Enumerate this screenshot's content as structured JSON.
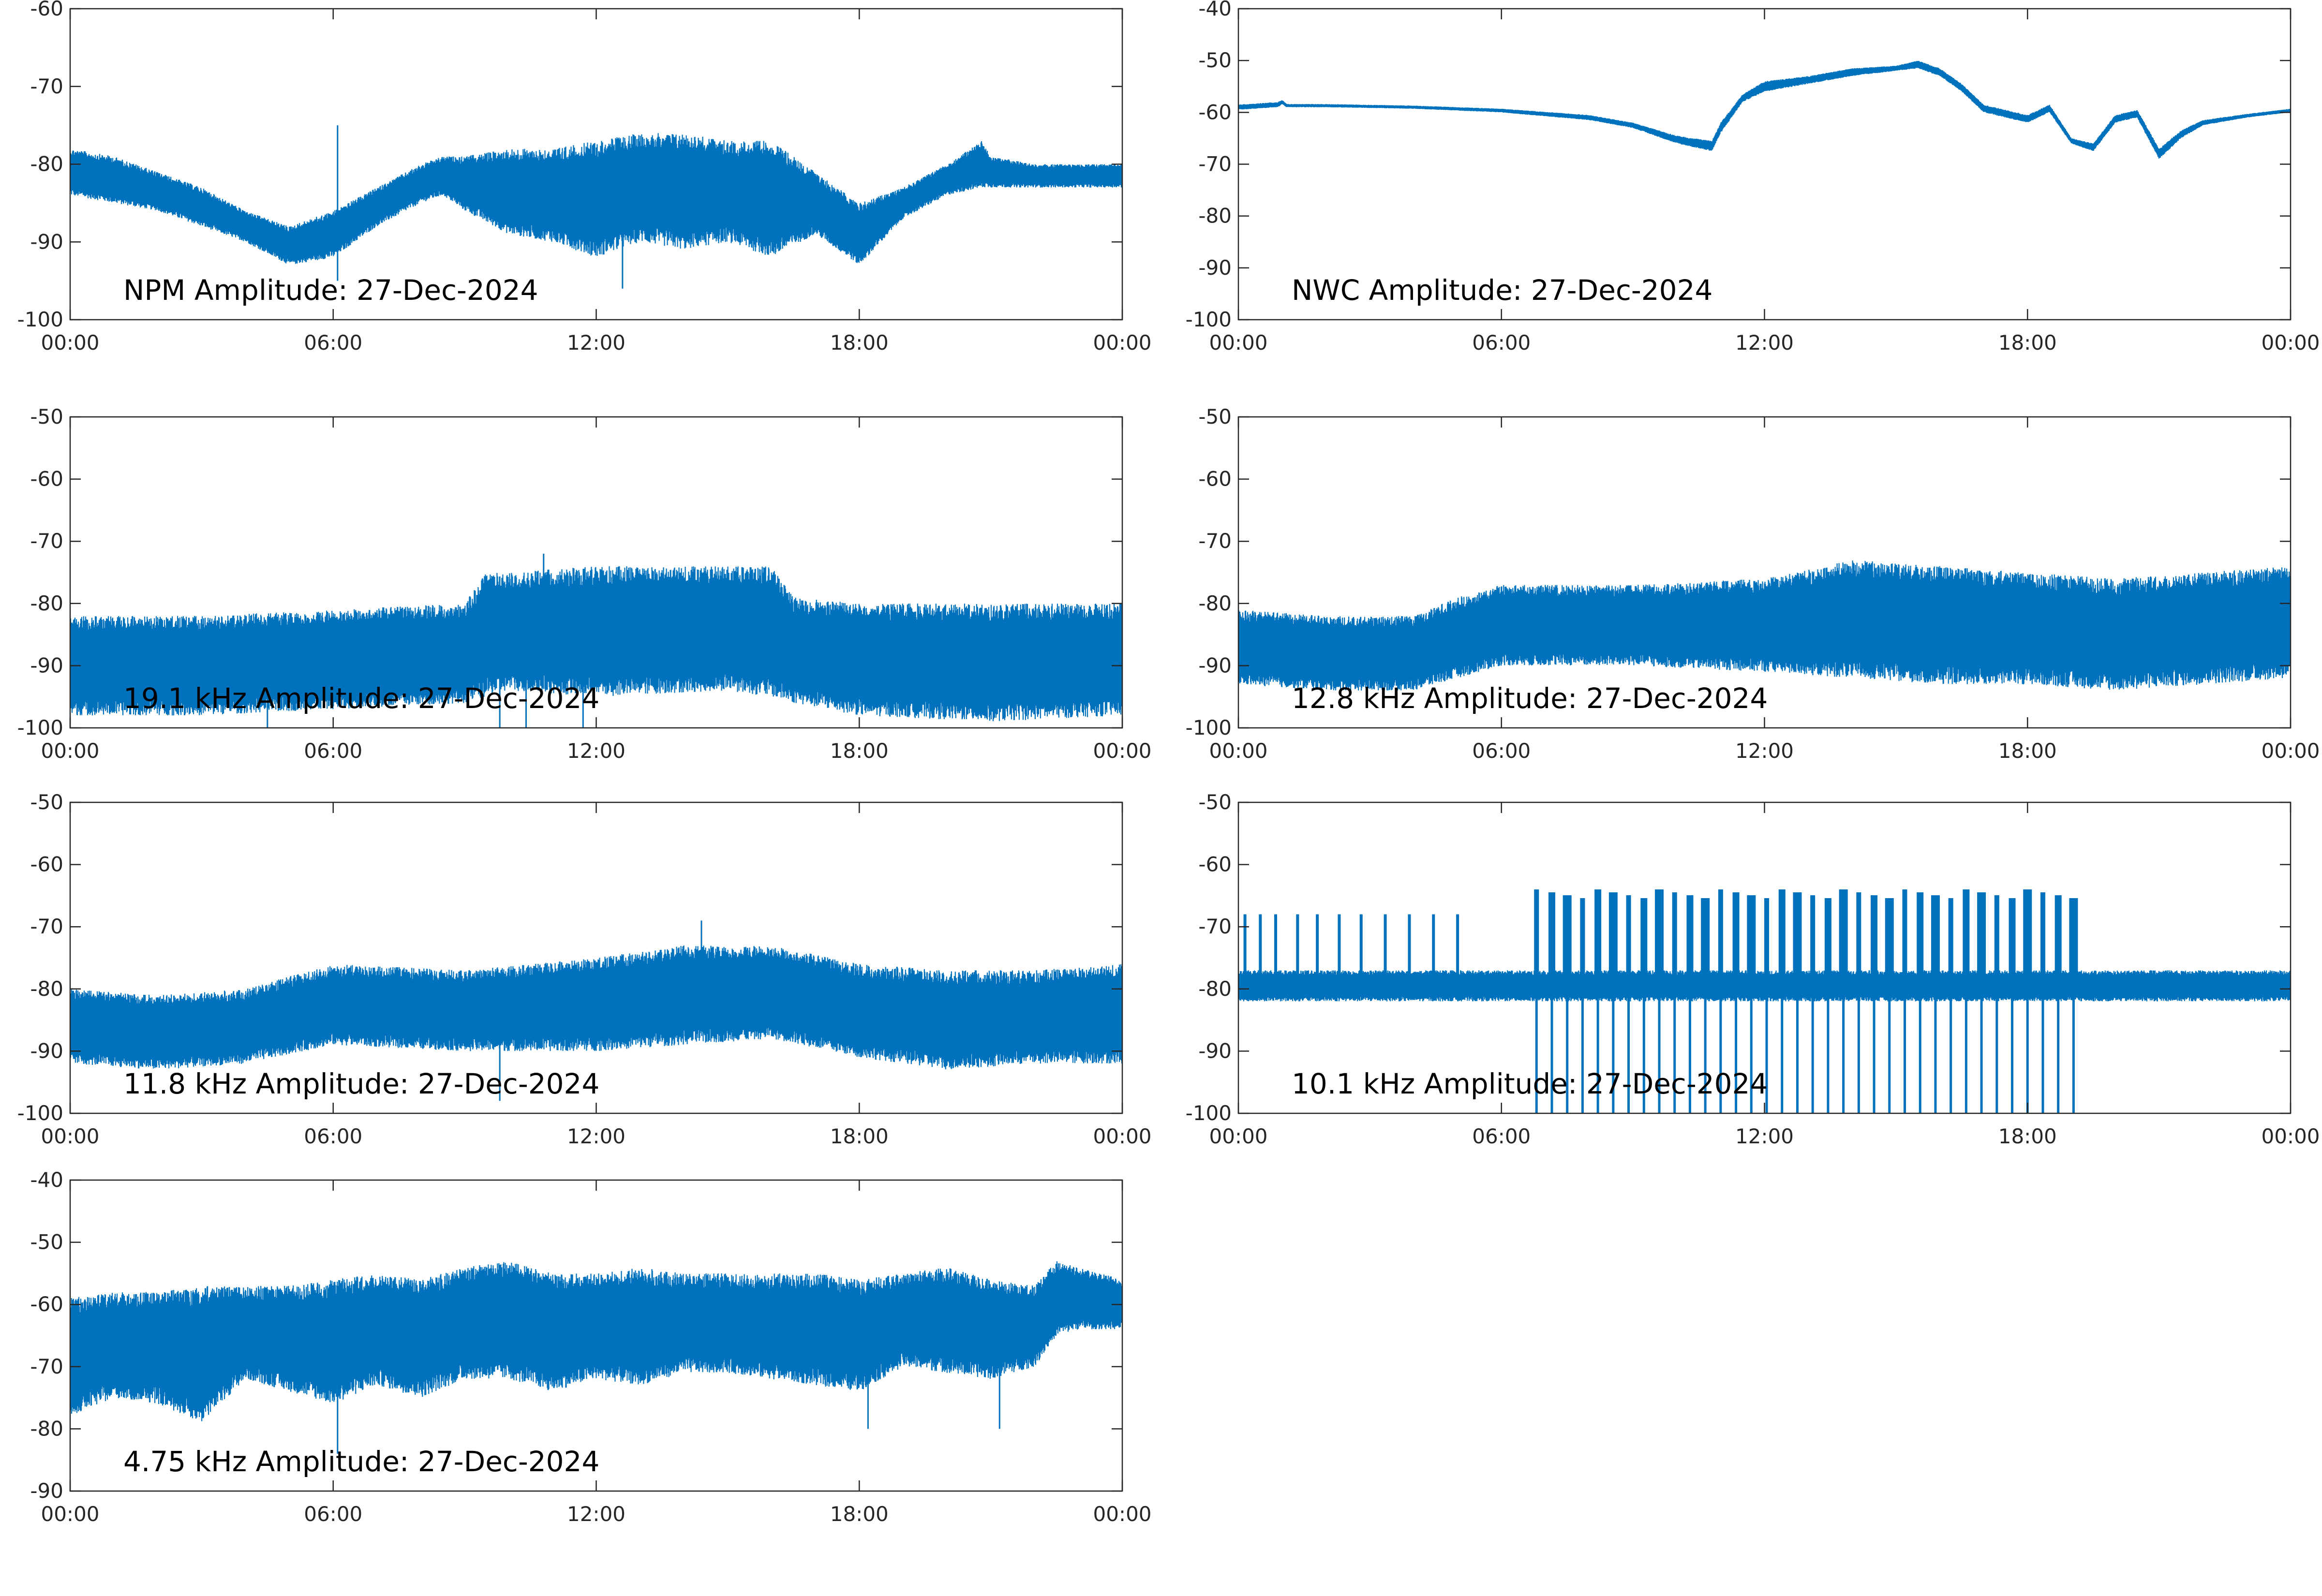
{
  "chart_data": [
    {
      "type": "line",
      "title": "NPM Amplitude: 27-Dec-2024",
      "x_ticks": [
        "00:00",
        "06:00",
        "12:00",
        "18:00",
        "00:00"
      ],
      "xlim_hours": [
        0,
        24
      ],
      "ylim": [
        -100,
        -60
      ],
      "y_ticks": [
        -60,
        -70,
        -80,
        -90,
        -100
      ],
      "grid": false,
      "color": "#0072BD",
      "series": [
        {
          "x_hours": [
            0,
            1,
            2,
            3,
            4,
            5,
            6,
            7,
            8,
            8.5,
            9,
            10,
            11,
            12,
            13,
            14,
            15,
            16,
            17,
            17.5,
            18,
            19,
            20,
            20.8,
            21,
            22,
            23,
            24
          ],
          "min": [
            -84,
            -85,
            -86,
            -88,
            -90,
            -93,
            -92,
            -88,
            -85,
            -84,
            -86,
            -89,
            -90,
            -92,
            -90,
            -91,
            -90,
            -92,
            -89,
            -91,
            -93,
            -87,
            -84,
            -83,
            -83,
            -83,
            -83,
            -83
          ],
          "max": [
            -78,
            -79,
            -81,
            -83,
            -86,
            -88,
            -86,
            -83,
            -80,
            -79,
            -79,
            -78,
            -78,
            -77,
            -76,
            -76,
            -77,
            -77,
            -81,
            -83,
            -85,
            -83,
            -80,
            -77,
            -79,
            -80,
            -80,
            -80
          ],
          "spikes": [
            {
              "x": 6.1,
              "y": -75
            },
            {
              "x": 6.1,
              "y": -95
            },
            {
              "x": 12.6,
              "y": -96
            }
          ]
        }
      ]
    },
    {
      "type": "line",
      "title": "NWC Amplitude: 27-Dec-2024",
      "x_ticks": [
        "00:00",
        "06:00",
        "12:00",
        "18:00",
        "00:00"
      ],
      "xlim_hours": [
        0,
        24
      ],
      "ylim": [
        -100,
        -40
      ],
      "y_ticks": [
        -40,
        -50,
        -60,
        -70,
        -80,
        -90,
        -100
      ],
      "grid": false,
      "color": "#0072BD",
      "series": [
        {
          "x_hours": [
            0,
            0.9,
            1,
            1.1,
            2,
            4,
            6,
            8,
            9,
            10,
            10.8,
            11,
            11.5,
            12,
            13,
            14,
            15,
            15.5,
            16,
            16.5,
            17,
            17.5,
            18,
            18.5,
            19,
            19.5,
            20,
            20.5,
            21,
            21.5,
            22,
            23,
            24
          ],
          "min": [
            -59.5,
            -59,
            -58.4,
            -59,
            -59,
            -59.3,
            -60,
            -61.5,
            -63,
            -66,
            -67.5,
            -64,
            -58,
            -56,
            -54.5,
            -53,
            -52,
            -51.5,
            -53,
            -56,
            -60,
            -61,
            -62,
            -60,
            -66,
            -67.5,
            -62,
            -61,
            -69,
            -65,
            -62.5,
            -61,
            -60
          ],
          "max": [
            -58.5,
            -58,
            -57.6,
            -58.4,
            -58.4,
            -58.7,
            -59.3,
            -60.5,
            -62,
            -64.5,
            -65.5,
            -62,
            -56.5,
            -54,
            -53,
            -51.5,
            -51,
            -50,
            -51.5,
            -54.5,
            -58.5,
            -59.5,
            -60.5,
            -58.5,
            -65,
            -66,
            -60.5,
            -59.5,
            -67,
            -63.5,
            -61.5,
            -60.3,
            -59.3
          ]
        }
      ]
    },
    {
      "type": "line",
      "title": "19.1 kHz Amplitude: 27-Dec-2024",
      "x_ticks": [
        "00:00",
        "06:00",
        "12:00",
        "18:00",
        "00:00"
      ],
      "xlim_hours": [
        0,
        24
      ],
      "ylim": [
        -100,
        -50
      ],
      "y_ticks": [
        -50,
        -60,
        -70,
        -80,
        -90,
        -100
      ],
      "grid": false,
      "color": "#0072BD",
      "series": [
        {
          "x_hours": [
            0,
            3,
            6,
            9,
            9.5,
            10,
            12,
            15,
            16,
            16.5,
            18,
            21,
            24
          ],
          "min": [
            -98,
            -98,
            -97,
            -96,
            -95,
            -94,
            -95,
            -94,
            -95,
            -96,
            -98,
            -99,
            -98
          ],
          "max": [
            -82,
            -82,
            -81,
            -80,
            -75,
            -75,
            -74,
            -74,
            -74,
            -79,
            -80,
            -80,
            -80
          ],
          "spikes": [
            {
              "x": 4.5,
              "y": -100
            },
            {
              "x": 9.8,
              "y": -100
            },
            {
              "x": 10.4,
              "y": -100
            },
            {
              "x": 11.7,
              "y": -100
            },
            {
              "x": 10.8,
              "y": -72
            }
          ]
        }
      ]
    },
    {
      "type": "line",
      "title": "12.8 kHz Amplitude: 27-Dec-2024",
      "x_ticks": [
        "00:00",
        "06:00",
        "12:00",
        "18:00",
        "00:00"
      ],
      "xlim_hours": [
        0,
        24
      ],
      "ylim": [
        -100,
        -50
      ],
      "y_ticks": [
        -50,
        -60,
        -70,
        -80,
        -90,
        -100
      ],
      "grid": false,
      "color": "#0072BD",
      "series": [
        {
          "x_hours": [
            0,
            2,
            4,
            5,
            6,
            9,
            12,
            14,
            16,
            18,
            20,
            22,
            24
          ],
          "min": [
            -93,
            -94,
            -94,
            -92,
            -90,
            -90,
            -91,
            -92,
            -93,
            -93,
            -94,
            -93,
            -92
          ],
          "max": [
            -81,
            -82,
            -82,
            -79,
            -77,
            -77,
            -76,
            -73,
            -74,
            -75,
            -76,
            -75,
            -74
          ]
        }
      ]
    },
    {
      "type": "line",
      "title": "11.8 kHz Amplitude: 27-Dec-2024",
      "x_ticks": [
        "00:00",
        "06:00",
        "12:00",
        "18:00",
        "00:00"
      ],
      "xlim_hours": [
        0,
        24
      ],
      "ylim": [
        -100,
        -50
      ],
      "y_ticks": [
        -50,
        -60,
        -70,
        -80,
        -90,
        -100
      ],
      "grid": false,
      "color": "#0072BD",
      "series": [
        {
          "x_hours": [
            0,
            2,
            4,
            6,
            9,
            12,
            14,
            16,
            18,
            20,
            22,
            24
          ],
          "min": [
            -92,
            -93,
            -92,
            -89,
            -90,
            -90,
            -89,
            -88,
            -91,
            -93,
            -92,
            -92
          ],
          "max": [
            -80,
            -81,
            -80,
            -76,
            -77,
            -75,
            -73,
            -73,
            -76,
            -77,
            -77,
            -76
          ],
          "spikes": [
            {
              "x": 9.8,
              "y": -98
            },
            {
              "x": 14.4,
              "y": -69
            }
          ]
        }
      ]
    },
    {
      "type": "line",
      "title": "10.1 kHz Amplitude: 27-Dec-2024",
      "x_ticks": [
        "00:00",
        "06:00",
        "12:00",
        "18:00",
        "00:00"
      ],
      "xlim_hours": [
        0,
        24
      ],
      "ylim": [
        -100,
        -50
      ],
      "y_ticks": [
        -50,
        -60,
        -70,
        -80,
        -90,
        -100
      ],
      "grid": false,
      "color": "#0072BD",
      "series": [
        {
          "x_hours": [
            0,
            3,
            6.7,
            7,
            12,
            18.5,
            19,
            19.7,
            20,
            24
          ],
          "min": [
            -82,
            -82,
            -82,
            -82,
            -82,
            -82,
            -82,
            -82,
            -82,
            -82
          ],
          "max": [
            -77,
            -77,
            -77,
            -77,
            -77,
            -77,
            -77,
            -77,
            -77,
            -77
          ],
          "bursts_to": -68,
          "deep_bursts_top": -64,
          "deep_bursts_bottom": -100,
          "burst_hours": [
            0.15,
            0.5,
            0.85,
            1.35,
            1.8,
            2.3,
            2.8,
            3.35,
            3.9,
            4.45,
            5.0
          ],
          "deep_burst_hours": [
            6.8,
            7.15,
            7.5,
            7.85,
            8.2,
            8.55,
            8.9,
            9.25,
            9.6,
            9.95,
            10.3,
            10.65,
            11.0,
            11.35,
            11.7,
            12.05,
            12.4,
            12.75,
            13.1,
            13.45,
            13.8,
            14.15,
            14.5,
            14.85,
            15.2,
            15.55,
            15.9,
            16.25,
            16.6,
            16.95,
            17.3,
            17.65,
            18.0,
            18.35,
            18.7,
            19.05
          ]
        }
      ]
    },
    {
      "type": "line",
      "title": "4.75 kHz Amplitude: 27-Dec-2024",
      "x_ticks": [
        "00:00",
        "06:00",
        "12:00",
        "18:00",
        "00:00"
      ],
      "xlim_hours": [
        0,
        24
      ],
      "ylim": [
        -90,
        -40
      ],
      "y_ticks": [
        -40,
        -50,
        -60,
        -70,
        -80,
        -90
      ],
      "grid": false,
      "color": "#0072BD",
      "series": [
        {
          "x_hours": [
            0,
            1,
            2,
            3,
            4,
            5,
            6,
            7,
            8,
            9,
            10,
            11,
            12,
            13,
            14,
            15,
            16,
            17,
            18,
            19,
            20,
            21,
            22,
            22.5,
            23,
            24
          ],
          "min": [
            -78,
            -75,
            -76,
            -79,
            -72,
            -74,
            -76,
            -73,
            -75,
            -72,
            -72,
            -74,
            -72,
            -73,
            -71,
            -71,
            -72,
            -73,
            -74,
            -70,
            -71,
            -72,
            -70,
            -65,
            -64,
            -64
          ],
          "max": [
            -59,
            -58,
            -58,
            -57,
            -57,
            -57,
            -56,
            -55,
            -56,
            -54,
            -53,
            -55,
            -55,
            -54,
            -55,
            -55,
            -55,
            -55,
            -56,
            -55,
            -54,
            -56,
            -57,
            -53,
            -54,
            -56
          ],
          "spikes": [
            {
              "x": 6.1,
              "y": -84
            },
            {
              "x": 21.2,
              "y": -80
            },
            {
              "x": 18.2,
              "y": -80
            }
          ]
        }
      ]
    }
  ]
}
